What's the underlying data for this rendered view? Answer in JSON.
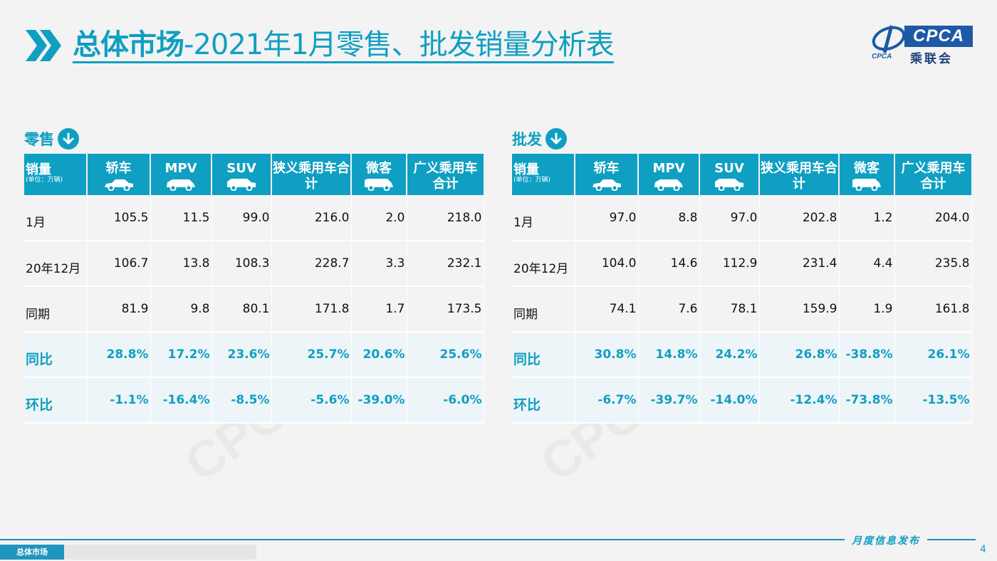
{
  "header": {
    "title_bold": "总体市场",
    "title_rest": "-2021年1月零售、批发销量分析表",
    "logo_text": "CPCA",
    "logo_cn": "乘联会",
    "logo_small": "CPCA"
  },
  "retail": {
    "title": "零售",
    "table": {
      "headers": [
        {
          "label": "销量",
          "unit": "(单位：万辆)"
        },
        {
          "label": "轿车"
        },
        {
          "label": "MPV"
        },
        {
          "label": "SUV"
        },
        {
          "label": "狭义乘用车合计"
        },
        {
          "label": "微客"
        },
        {
          "label": "广义乘用车合计"
        }
      ],
      "rows": [
        {
          "cells": [
            "1月",
            "105.5",
            "11.5",
            "99.0",
            "216.0",
            "2.0",
            "218.0"
          ]
        },
        {
          "cells": [
            "20年12月",
            "106.7",
            "13.8",
            "108.3",
            "228.7",
            "3.3",
            "232.1"
          ]
        },
        {
          "cells": [
            "同期",
            "81.9",
            "9.8",
            "80.1",
            "171.8",
            "1.7",
            "173.5"
          ]
        },
        {
          "cells": [
            "同比",
            "28.8%",
            "17.2%",
            "23.6%",
            "25.7%",
            "20.6%",
            "25.6%"
          ]
        },
        {
          "cells": [
            "环比",
            "-1.1%",
            "-16.4%",
            "-8.5%",
            "-5.6%",
            "-39.0%",
            "-6.0%"
          ]
        }
      ]
    }
  },
  "wholesale": {
    "title": "批发",
    "table": {
      "headers": [
        {
          "label": "销量",
          "unit": "(单位：万辆)"
        },
        {
          "label": "轿车"
        },
        {
          "label": "MPV"
        },
        {
          "label": "SUV"
        },
        {
          "label": "狭义乘用车合计"
        },
        {
          "label": "微客"
        },
        {
          "label": "广义乘用车合计"
        }
      ],
      "rows": [
        {
          "cells": [
            "1月",
            "97.0",
            "8.8",
            "97.0",
            "202.8",
            "1.2",
            "204.0"
          ]
        },
        {
          "cells": [
            "20年12月",
            "104.0",
            "14.6",
            "112.9",
            "231.4",
            "4.4",
            "235.8"
          ]
        },
        {
          "cells": [
            "同期",
            "74.1",
            "7.6",
            "78.1",
            "159.9",
            "1.9",
            "161.8"
          ]
        },
        {
          "cells": [
            "同比",
            "30.8%",
            "14.8%",
            "24.2%",
            "26.8%",
            "-38.8%",
            "26.1%"
          ]
        },
        {
          "cells": [
            "环比",
            "-6.7%",
            "-39.7%",
            "-14.0%",
            "-12.4%",
            "-73.8%",
            "-13.5%"
          ]
        }
      ]
    }
  },
  "footer": {
    "slogan": "月度信息发布",
    "page_number": "4",
    "nav": [
      "总体市场"
    ]
  },
  "colors": {
    "accent": "#0f9fc2",
    "logo_blue": "#1d5aa6"
  }
}
